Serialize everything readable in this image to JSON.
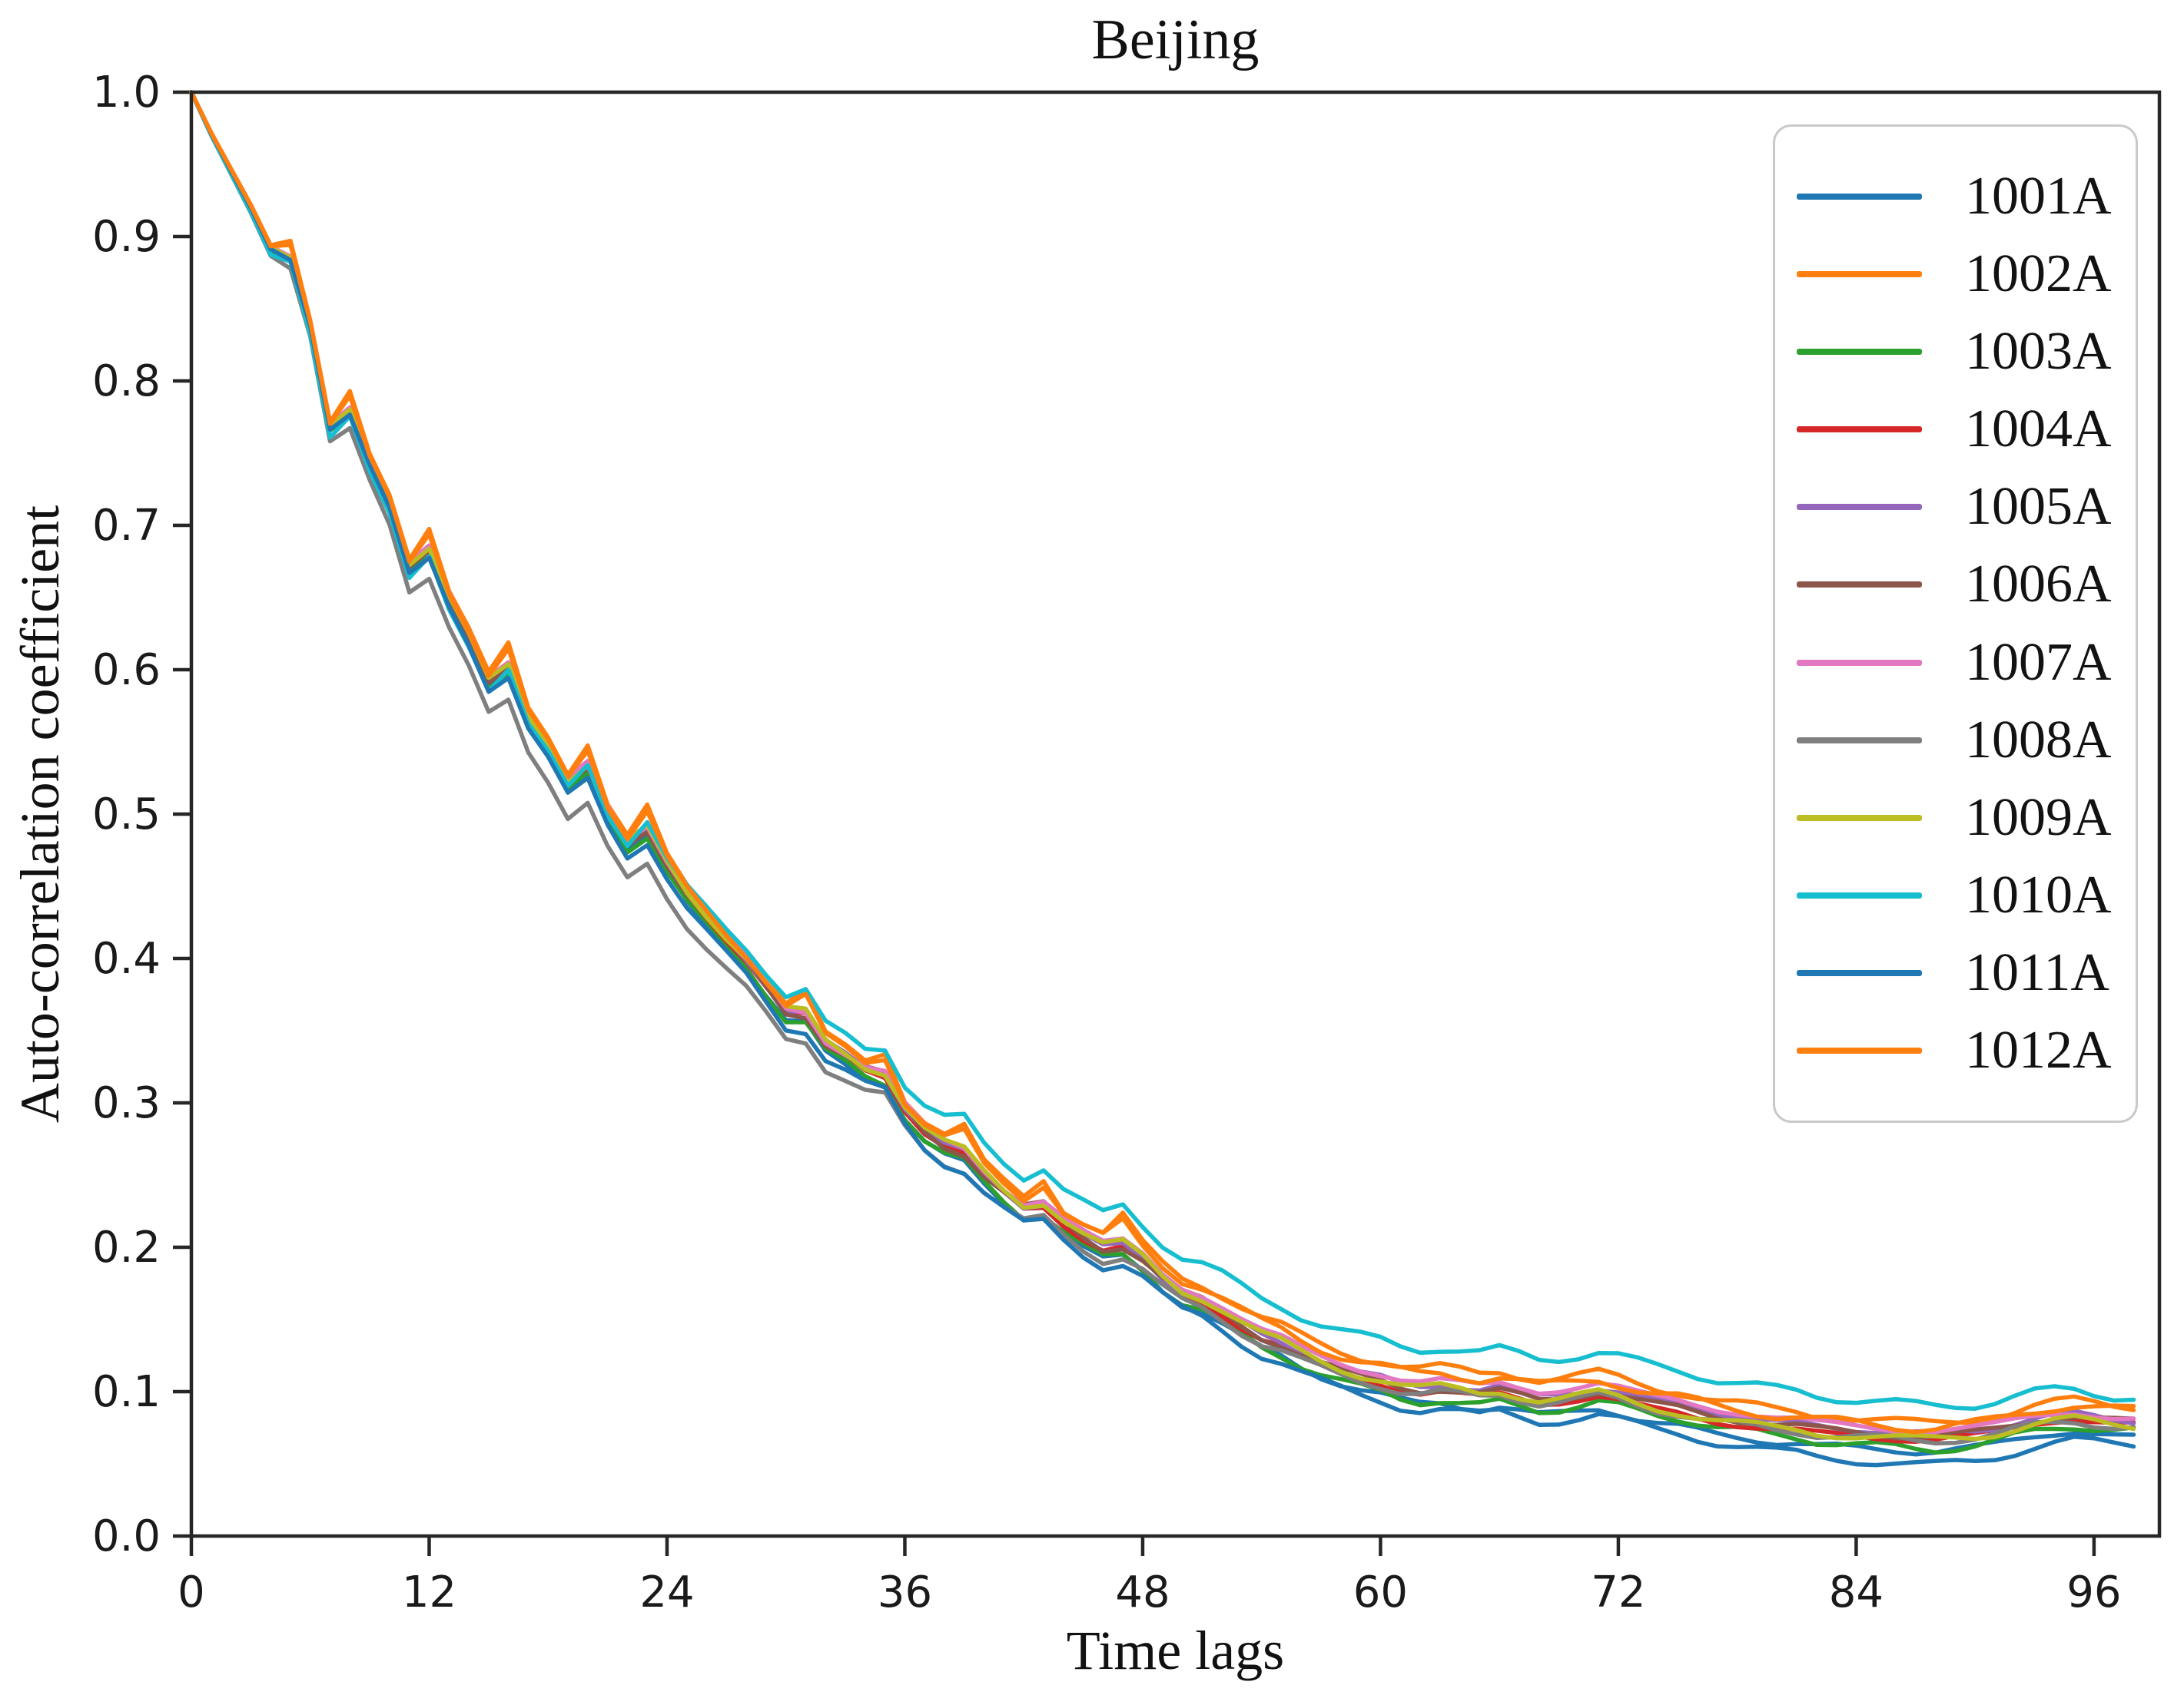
{
  "chart_data": {
    "type": "line",
    "title": "Beijing",
    "xlabel": "Time lags",
    "ylabel": "Auto-correlation coefficient",
    "xlim": [
      0,
      99.3
    ],
    "ylim": [
      0.0,
      1.0
    ],
    "x_ticks": [
      0,
      12,
      24,
      36,
      48,
      60,
      72,
      84,
      96
    ],
    "y_ticks": [
      "0.0",
      "0.1",
      "0.2",
      "0.3",
      "0.4",
      "0.5",
      "0.6",
      "0.7",
      "0.8",
      "0.9",
      "1.0"
    ],
    "grid": false,
    "legend_position": "upper right",
    "n_lags": 99,
    "note": "12 station curves, lags 0-98. Each series value = base[lag] + linear-interp(offsets over offset_control_lags) + bump_extra at bump_lags + small sinusoidal jitter (amp,freq,phase) ramped in after lag 8. All curves start at exactly 1.0 at lag 0 and decay with small periodic bumps, flattening to ~0.05-0.13 after lag 60.",
    "base": [
      1.0,
      0.971,
      0.945,
      0.919,
      0.89,
      0.882,
      0.836,
      0.765,
      0.776,
      0.742,
      0.713,
      0.668,
      0.679,
      0.646,
      0.62,
      0.589,
      0.599,
      0.564,
      0.544,
      0.519,
      0.53,
      0.499,
      0.477,
      0.487,
      0.463,
      0.442,
      0.426,
      0.411,
      0.397,
      0.379,
      0.361,
      0.359,
      0.339,
      0.331,
      0.322,
      0.318,
      0.295,
      0.279,
      0.269,
      0.264,
      0.249,
      0.237,
      0.227,
      0.229,
      0.217,
      0.207,
      0.199,
      0.201,
      0.192,
      0.179,
      0.169,
      0.164,
      0.156,
      0.147,
      0.139,
      0.134,
      0.127,
      0.121,
      0.116,
      0.112,
      0.109,
      0.105,
      0.103,
      0.104,
      0.102,
      0.1,
      0.102,
      0.099,
      0.096,
      0.097,
      0.099,
      0.101,
      0.098,
      0.094,
      0.091,
      0.089,
      0.086,
      0.083,
      0.081,
      0.079,
      0.077,
      0.076,
      0.074,
      0.073,
      0.072,
      0.071,
      0.07,
      0.069,
      0.069,
      0.07,
      0.071,
      0.073,
      0.076,
      0.079,
      0.081,
      0.082,
      0.08,
      0.078,
      0.077
    ],
    "offset_control_lags": [
      0,
      6,
      12,
      20,
      28,
      40,
      52,
      64,
      76,
      88,
      98
    ],
    "bump_lags": [
      5,
      8,
      12,
      16,
      20,
      23,
      31,
      35,
      39,
      43,
      47
    ],
    "series": [
      {
        "name": "1001A",
        "color": "#1f77b4",
        "bump_extra": 0,
        "jitter_amp": 0.0022,
        "jitter_freq": 0.85,
        "jitter_phase": 0.0,
        "offsets": [
          0,
          0.002,
          0.001,
          -0.001,
          -0.004,
          -0.006,
          -0.009,
          -0.012,
          -0.013,
          -0.01,
          -0.009
        ]
      },
      {
        "name": "1002A",
        "color": "#ff7f0e",
        "bump_extra": 0.01,
        "jitter_amp": 0.003,
        "jitter_freq": 0.8,
        "jitter_phase": 1.3,
        "offsets": [
          0,
          0.006,
          0.009,
          0.009,
          0.007,
          0.009,
          0.011,
          0.013,
          0.011,
          0.009,
          0.013
        ]
      },
      {
        "name": "1003A",
        "color": "#2ca02c",
        "bump_extra": 0,
        "jitter_amp": 0.0028,
        "jitter_freq": 0.95,
        "jitter_phase": 2.1,
        "offsets": [
          0,
          0.001,
          -0.001,
          -0.002,
          -0.003,
          -0.005,
          -0.008,
          -0.01,
          -0.007,
          -0.009,
          -0.004
        ]
      },
      {
        "name": "1004A",
        "color": "#d62728",
        "bump_extra": 0,
        "jitter_amp": 0.002,
        "jitter_freq": 0.75,
        "jitter_phase": 3.0,
        "offsets": [
          0,
          0.004,
          0.004,
          0.003,
          0.002,
          0.0,
          -0.002,
          -0.004,
          -0.004,
          -0.002,
          0.0
        ]
      },
      {
        "name": "1005A",
        "color": "#9467bd",
        "bump_extra": 0,
        "jitter_amp": 0.002,
        "jitter_freq": 0.9,
        "jitter_phase": 4.2,
        "offsets": [
          0,
          0.004,
          0.006,
          0.005,
          0.003,
          0.002,
          0.0,
          0.001,
          0.002,
          0.002,
          0.003
        ]
      },
      {
        "name": "1006A",
        "color": "#8c564b",
        "bump_extra": 0,
        "jitter_amp": 0.0024,
        "jitter_freq": 0.8,
        "jitter_phase": 5.1,
        "offsets": [
          0,
          0.003,
          0.003,
          0.002,
          0.002,
          0.001,
          -0.001,
          -0.002,
          0.0,
          0.0,
          0.002
        ]
      },
      {
        "name": "1007A",
        "color": "#e377c2",
        "bump_extra": 0,
        "jitter_amp": 0.002,
        "jitter_freq": 0.7,
        "jitter_phase": 0.7,
        "offsets": [
          0,
          0.005,
          0.007,
          0.006,
          0.004,
          0.004,
          0.003,
          0.004,
          0.005,
          0.004,
          0.004
        ]
      },
      {
        "name": "1008A",
        "color": "#7f7f7f",
        "bump_extra": 0,
        "jitter_amp": 0.0026,
        "jitter_freq": 0.88,
        "jitter_phase": 1.9,
        "offsets": [
          0,
          -0.005,
          -0.016,
          -0.023,
          -0.018,
          -0.01,
          -0.006,
          -0.004,
          -0.004,
          -0.003,
          -0.002
        ]
      },
      {
        "name": "1009A",
        "color": "#bcbd22",
        "bump_extra": 0,
        "jitter_amp": 0.0028,
        "jitter_freq": 0.78,
        "jitter_phase": 2.8,
        "offsets": [
          0,
          0.004,
          0.005,
          0.004,
          0.004,
          0.003,
          0.001,
          -0.001,
          -0.003,
          -0.002,
          -0.001
        ]
      },
      {
        "name": "1010A",
        "color": "#17becf",
        "bump_extra": 0.004,
        "jitter_amp": 0.0034,
        "jitter_freq": 0.92,
        "jitter_phase": 3.6,
        "offsets": [
          0,
          -0.004,
          -0.005,
          0.0,
          0.011,
          0.022,
          0.025,
          0.027,
          0.026,
          0.021,
          0.019
        ]
      },
      {
        "name": "1011A",
        "color": "#1f77b4",
        "bump_extra": 0,
        "jitter_amp": 0.003,
        "jitter_freq": 0.82,
        "jitter_phase": 4.8,
        "offsets": [
          0,
          0.002,
          -0.002,
          -0.006,
          -0.008,
          -0.011,
          -0.013,
          -0.016,
          -0.018,
          -0.02,
          -0.014
        ]
      },
      {
        "name": "1012A",
        "color": "#ff7f0e",
        "bump_extra": 0.008,
        "jitter_amp": 0.0032,
        "jitter_freq": 0.86,
        "jitter_phase": 5.6,
        "offsets": [
          0,
          0.005,
          0.007,
          0.007,
          0.006,
          0.007,
          0.009,
          0.009,
          0.007,
          0.006,
          0.01
        ]
      }
    ],
    "colors": {
      "axis": "#262626",
      "tick_label": "#1a1a1a",
      "text": "#111111",
      "legend_border": "#c9c9c9",
      "background": "#ffffff"
    }
  }
}
